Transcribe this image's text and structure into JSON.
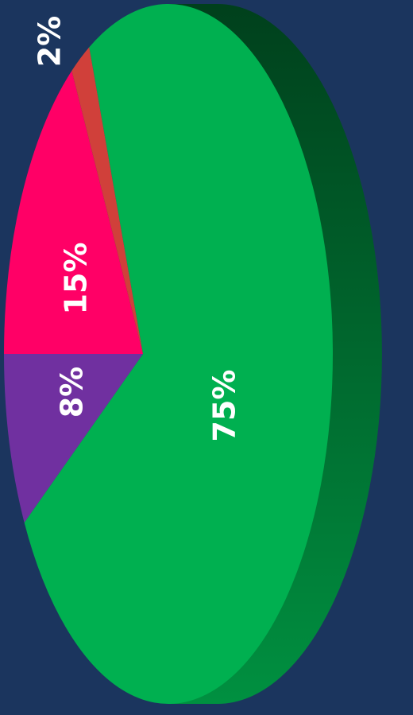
{
  "chart_data": {
    "type": "pie",
    "categories": [
      null,
      null,
      null,
      null
    ],
    "values": [
      75,
      8,
      15,
      2
    ],
    "value_labels": [
      "75%",
      "8%",
      "15%",
      "2%"
    ],
    "colors": [
      "#00b050",
      "#7030a0",
      "#ff0066",
      "#d0403a"
    ]
  }
}
